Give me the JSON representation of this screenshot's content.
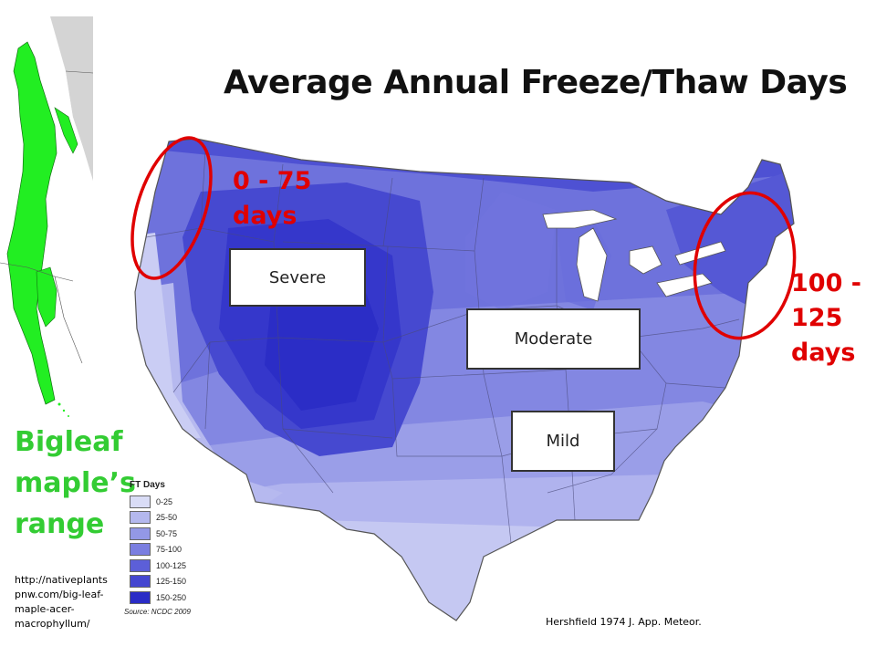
{
  "title": "Average Annual Freeze/Thaw Days",
  "range_caption": [
    "Bigleaf",
    "maple’s",
    "range"
  ],
  "range_source_url": [
    "http://nativeplants",
    "pnw.com/big-leaf-",
    "maple-acer-",
    "macrophyllum/"
  ],
  "zones": {
    "severe": "Severe",
    "moderate": "Moderate",
    "mild": "Mild"
  },
  "callouts": {
    "west": [
      "0 - 75",
      "days"
    ],
    "east": [
      "100 -",
      "125",
      "days"
    ]
  },
  "legend": {
    "title": "FT Days",
    "items": [
      {
        "label": "0-25",
        "color": "#d9dcf6"
      },
      {
        "label": "25-50",
        "color": "#b4b8ee"
      },
      {
        "label": "50-75",
        "color": "#9398e6"
      },
      {
        "label": "75-100",
        "color": "#7a7ee0"
      },
      {
        "label": "100-125",
        "color": "#5c5fd8"
      },
      {
        "label": "125-150",
        "color": "#4446d0"
      },
      {
        "label": "150-250",
        "color": "#2a2cc6"
      }
    ],
    "source": "Source: NCDC 2009"
  },
  "citation": "Hershfield 1974 J. App. Meteor.",
  "colors": {
    "callout_red": "#e00000",
    "range_green": "#33cc33",
    "map_base": "#7a7ee0"
  }
}
